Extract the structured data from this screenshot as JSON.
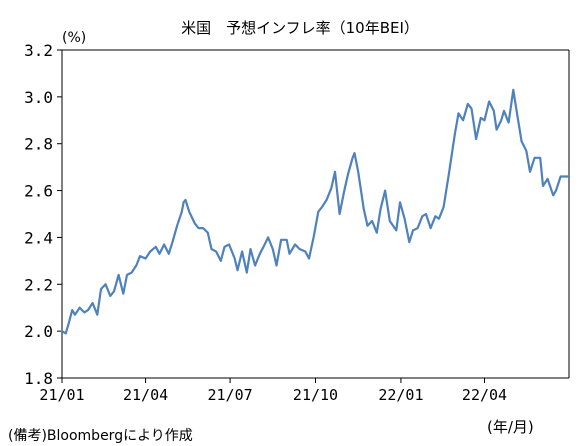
{
  "title": "米国　予想インフレ率（10年BEI）",
  "y_unit": "(%)",
  "x_unit": "(年/月)",
  "source_note": "(備考)Bloombergにより作成",
  "colors": {
    "series": "#4f81bd",
    "axis": "#000000",
    "background": "#ffffff"
  },
  "chart_data": {
    "type": "line",
    "title": "米国　予想インフレ率（10年BEI）",
    "ylabel": "(%)",
    "xlabel": "(年/月)",
    "ylim": [
      1.8,
      3.2
    ],
    "yticks": [
      1.8,
      2.0,
      2.2,
      2.4,
      2.6,
      2.8,
      3.0,
      3.2
    ],
    "ytick_labels": [
      "1.8",
      "2.0",
      "2.2",
      "2.4",
      "2.6",
      "2.8",
      "3.0",
      "3.2"
    ],
    "xlim": [
      "2021-01-01",
      "2022-07-01"
    ],
    "xticks": [
      {
        "label": "21/01",
        "date": "2021-01-01"
      },
      {
        "label": "21/04",
        "date": "2021-04-01"
      },
      {
        "label": "21/07",
        "date": "2021-07-01"
      },
      {
        "label": "21/10",
        "date": "2021-10-01"
      },
      {
        "label": "22/01",
        "date": "2022-01-01"
      },
      {
        "label": "22/04",
        "date": "2022-04-01"
      }
    ],
    "grid": false,
    "legend": "none",
    "series": [
      {
        "x": [
          "2021-01-01",
          "2021-01-05",
          "2021-01-08",
          "2021-01-12",
          "2021-01-15",
          "2021-01-20",
          "2021-01-25",
          "2021-01-29",
          "2021-02-03",
          "2021-02-08",
          "2021-02-12",
          "2021-02-17",
          "2021-02-22",
          "2021-02-26",
          "2021-03-03",
          "2021-03-08",
          "2021-03-12",
          "2021-03-17",
          "2021-03-22",
          "2021-03-26",
          "2021-04-01",
          "2021-04-06",
          "2021-04-12",
          "2021-04-16",
          "2021-04-21",
          "2021-04-26",
          "2021-04-30",
          "2021-05-05",
          "2021-05-10",
          "2021-05-12",
          "2021-05-14",
          "2021-05-18",
          "2021-05-24",
          "2021-05-28",
          "2021-06-02",
          "2021-06-07",
          "2021-06-11",
          "2021-06-16",
          "2021-06-21",
          "2021-06-25",
          "2021-06-30",
          "2021-07-06",
          "2021-07-09",
          "2021-07-14",
          "2021-07-19",
          "2021-07-23",
          "2021-07-28",
          "2021-08-02",
          "2021-08-06",
          "2021-08-11",
          "2021-08-16",
          "2021-08-20",
          "2021-08-25",
          "2021-08-31",
          "2021-09-03",
          "2021-09-09",
          "2021-09-14",
          "2021-09-20",
          "2021-09-24",
          "2021-09-29",
          "2021-10-04",
          "2021-10-08",
          "2021-10-13",
          "2021-10-18",
          "2021-10-22",
          "2021-10-27",
          "2021-11-01",
          "2021-11-05",
          "2021-11-10",
          "2021-11-12",
          "2021-11-16",
          "2021-11-22",
          "2021-11-26",
          "2021-12-01",
          "2021-12-06",
          "2021-12-10",
          "2021-12-15",
          "2021-12-20",
          "2021-12-27",
          "2021-12-31",
          "2022-01-05",
          "2022-01-10",
          "2022-01-14",
          "2022-01-19",
          "2022-01-24",
          "2022-01-28",
          "2022-02-02",
          "2022-02-07",
          "2022-02-11",
          "2022-02-16",
          "2022-02-22",
          "2022-02-28",
          "2022-03-04",
          "2022-03-09",
          "2022-03-14",
          "2022-03-18",
          "2022-03-23",
          "2022-03-28",
          "2022-04-01",
          "2022-04-06",
          "2022-04-11",
          "2022-04-14",
          "2022-04-19",
          "2022-04-22",
          "2022-04-27",
          "2022-05-02",
          "2022-05-06",
          "2022-05-11",
          "2022-05-16",
          "2022-05-20",
          "2022-05-25",
          "2022-05-31",
          "2022-06-03",
          "2022-06-08",
          "2022-06-14",
          "2022-06-17",
          "2022-06-22",
          "2022-06-27",
          "2022-07-01"
        ],
        "y": [
          2.0,
          1.99,
          2.03,
          2.09,
          2.07,
          2.1,
          2.08,
          2.09,
          2.12,
          2.07,
          2.18,
          2.2,
          2.15,
          2.17,
          2.24,
          2.16,
          2.24,
          2.25,
          2.28,
          2.32,
          2.31,
          2.34,
          2.36,
          2.33,
          2.37,
          2.33,
          2.38,
          2.45,
          2.51,
          2.55,
          2.56,
          2.51,
          2.46,
          2.44,
          2.44,
          2.42,
          2.35,
          2.34,
          2.3,
          2.36,
          2.37,
          2.31,
          2.26,
          2.34,
          2.25,
          2.35,
          2.28,
          2.33,
          2.36,
          2.4,
          2.35,
          2.28,
          2.39,
          2.39,
          2.33,
          2.37,
          2.35,
          2.34,
          2.31,
          2.4,
          2.51,
          2.53,
          2.56,
          2.61,
          2.68,
          2.5,
          2.6,
          2.67,
          2.74,
          2.76,
          2.68,
          2.52,
          2.45,
          2.47,
          2.42,
          2.52,
          2.6,
          2.47,
          2.43,
          2.55,
          2.48,
          2.38,
          2.43,
          2.44,
          2.49,
          2.5,
          2.44,
          2.49,
          2.48,
          2.53,
          2.68,
          2.84,
          2.93,
          2.9,
          2.97,
          2.95,
          2.82,
          2.91,
          2.9,
          2.98,
          2.94,
          2.86,
          2.9,
          2.94,
          2.89,
          3.03,
          2.93,
          2.81,
          2.77,
          2.68,
          2.74,
          2.74,
          2.62,
          2.65,
          2.58,
          2.6,
          2.66,
          2.66,
          2.66
        ]
      }
    ]
  }
}
